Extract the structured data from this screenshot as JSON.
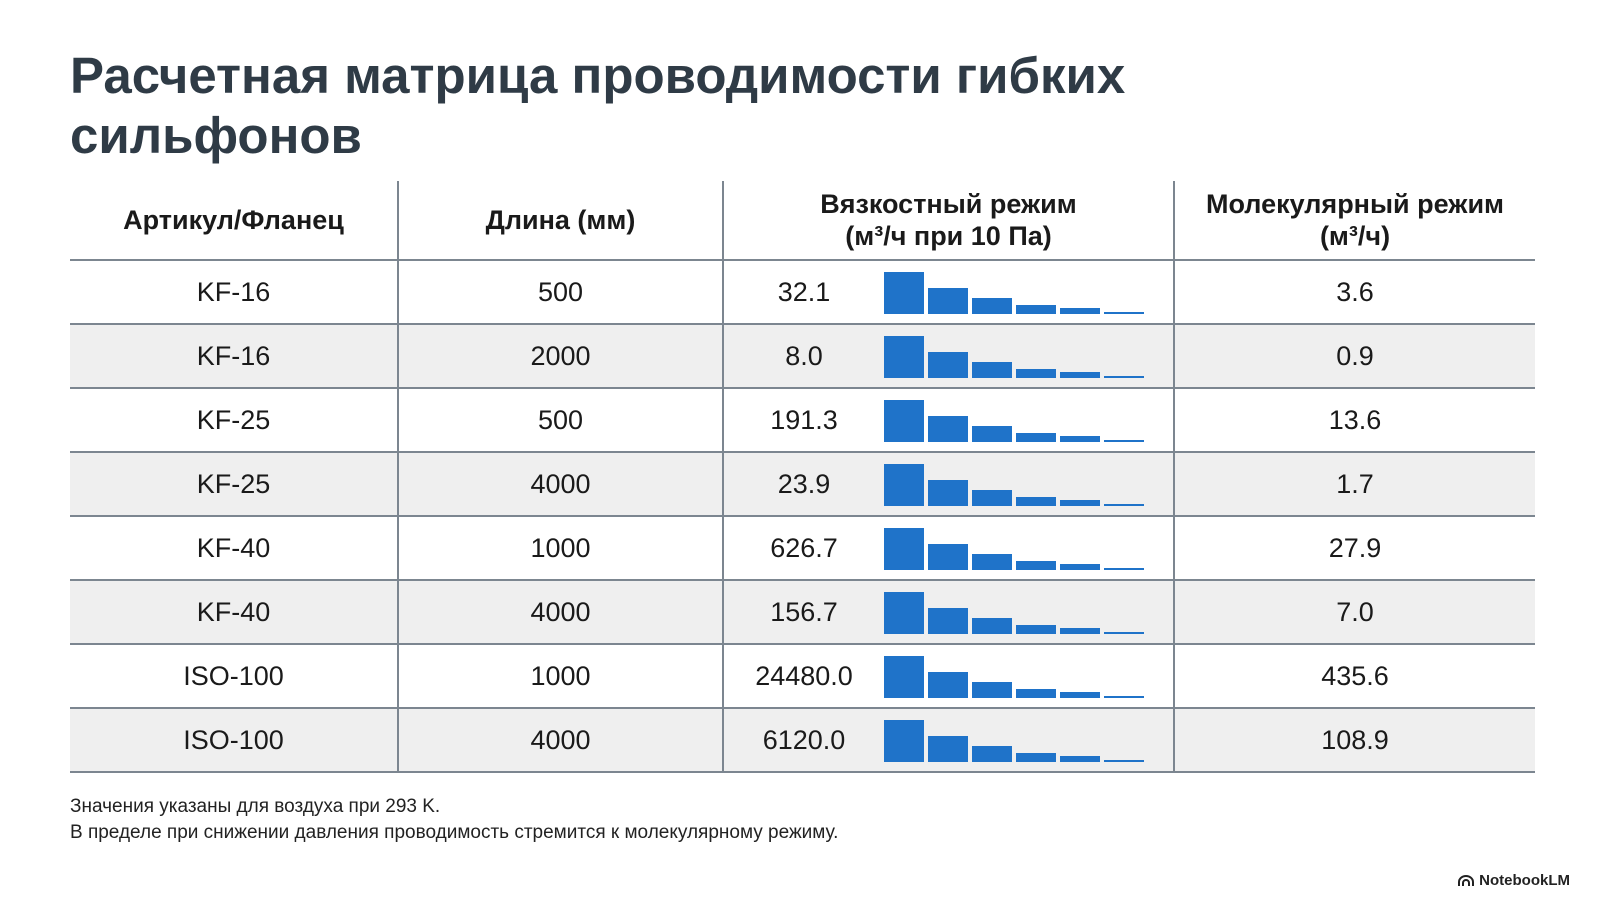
{
  "title": "Расчетная матрица проводимости гибких сильфонов",
  "table": {
    "headers": {
      "article": "Артикул/Фланец",
      "length": "Длина (мм)",
      "viscous_line1": "Вязкостный режим",
      "viscous_line2": "(м³/ч при 10 Па)",
      "molecular_line1": "Молекулярный режим",
      "molecular_line2": "(м³/ч)"
    },
    "rows": [
      {
        "article": "KF-16",
        "length": "500",
        "viscous": "32.1",
        "molecular": "3.6"
      },
      {
        "article": "KF-16",
        "length": "2000",
        "viscous": "8.0",
        "molecular": "0.9"
      },
      {
        "article": "KF-25",
        "length": "500",
        "viscous": "191.3",
        "molecular": "13.6"
      },
      {
        "article": "KF-25",
        "length": "4000",
        "viscous": "23.9",
        "molecular": "1.7"
      },
      {
        "article": "KF-40",
        "length": "1000",
        "viscous": "626.7",
        "molecular": "27.9"
      },
      {
        "article": "KF-40",
        "length": "4000",
        "viscous": "156.7",
        "molecular": "7.0"
      },
      {
        "article": "ISO-100",
        "length": "1000",
        "viscous": "24480.0",
        "molecular": "435.6"
      },
      {
        "article": "ISO-100",
        "length": "4000",
        "viscous": "6120.0",
        "molecular": "108.9"
      }
    ],
    "bar_color": "#1f73c9",
    "bar_levels": [
      1.0,
      0.62,
      0.38,
      0.22,
      0.14,
      0.05
    ]
  },
  "footnote": {
    "line1": "Значения указаны для воздуха при 293 K.",
    "line2": "В пределе при снижении давления проводимость стремится к молекулярному режиму."
  },
  "brand": {
    "name": "NotebookLM",
    "icon": "notebooklm-logo-icon"
  }
}
